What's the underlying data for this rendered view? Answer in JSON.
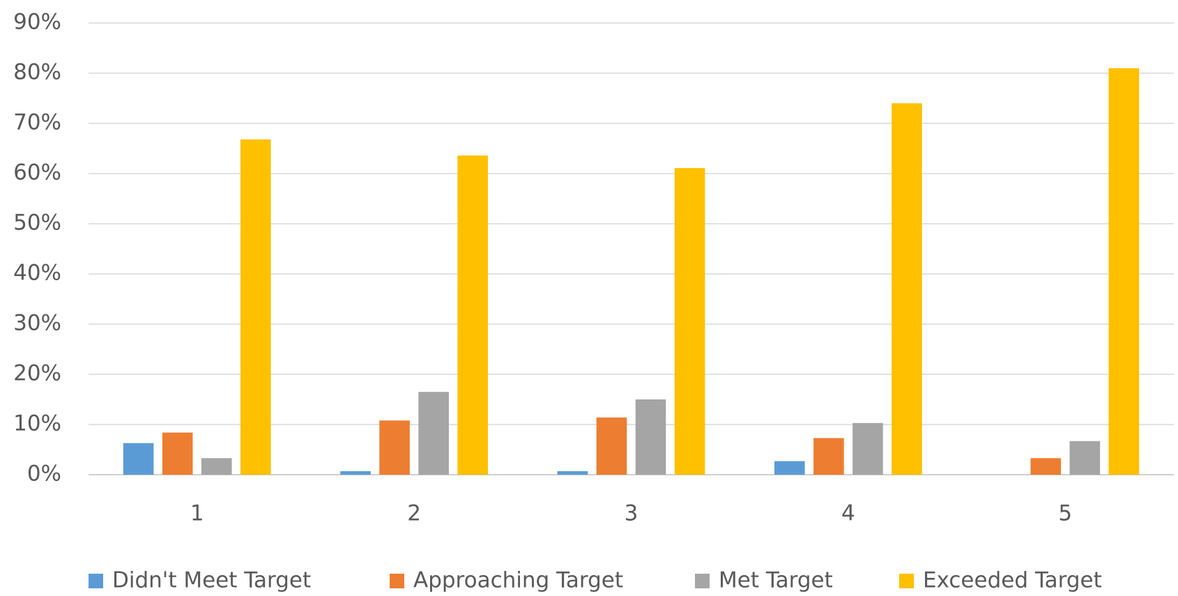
{
  "chart_data": {
    "type": "bar",
    "categories": [
      "1",
      "2",
      "3",
      "4",
      "5"
    ],
    "series": [
      {
        "name": "Didn't Meet Target",
        "color": "#5b9bd5",
        "values": [
          6.3,
          0.7,
          0.7,
          2.7,
          0
        ]
      },
      {
        "name": "Approaching Target",
        "color": "#ed7d31",
        "values": [
          8.4,
          10.8,
          11.4,
          7.3,
          3.3
        ]
      },
      {
        "name": "Met Target",
        "color": "#a5a5a5",
        "values": [
          3.3,
          16.5,
          15,
          10.3,
          6.7
        ]
      },
      {
        "name": "Exceeded Target",
        "color": "#ffc000",
        "values": [
          66.8,
          63.6,
          61.1,
          74,
          81
        ]
      }
    ],
    "ylim": [
      0,
      90
    ],
    "yticks": [
      {
        "value": 0,
        "label": "0%"
      },
      {
        "value": 10,
        "label": "10%"
      },
      {
        "value": 20,
        "label": "20%"
      },
      {
        "value": 30,
        "label": "30%"
      },
      {
        "value": 40,
        "label": "40%"
      },
      {
        "value": 50,
        "label": "50%"
      },
      {
        "value": 60,
        "label": "60%"
      },
      {
        "value": 70,
        "label": "70%"
      },
      {
        "value": 80,
        "label": "80%"
      },
      {
        "value": 90,
        "label": "90%"
      }
    ],
    "grid": true,
    "legend": "bottom"
  }
}
